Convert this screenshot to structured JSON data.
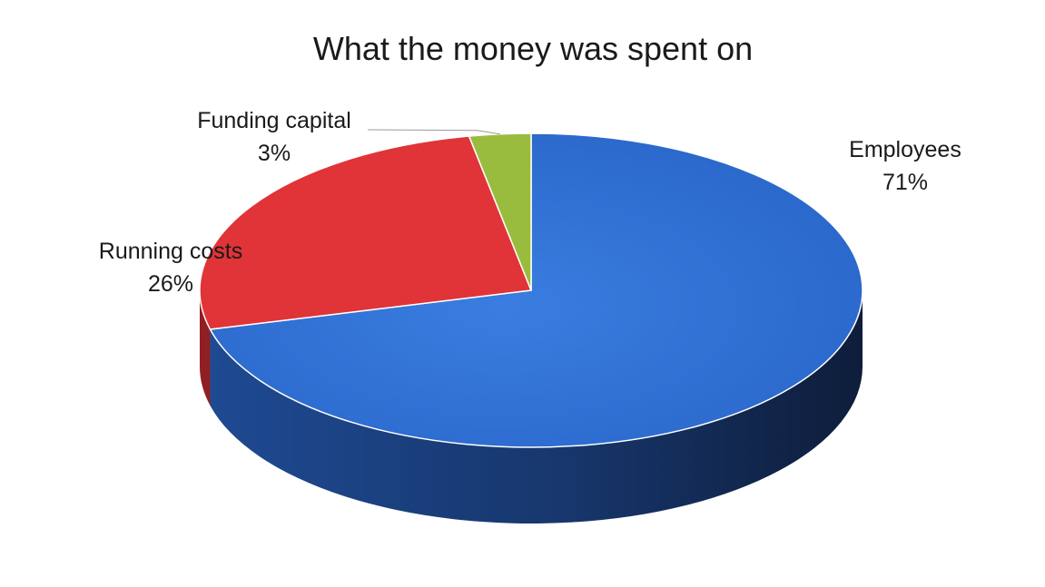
{
  "chart_data": {
    "type": "pie",
    "title": "What the money was spent on",
    "slices": [
      {
        "label": "Employees",
        "percent_label": "71%",
        "value": 71,
        "color": "#2e6fd0",
        "side_color": "#1c3f7c"
      },
      {
        "label": "Running costs",
        "percent_label": "26%",
        "value": 26,
        "color": "#e03438",
        "side_color": "#8f1f22"
      },
      {
        "label": "Funding capital",
        "percent_label": "3%",
        "value": 3,
        "color": "#9abc3e",
        "side_color": "#5f7a22"
      }
    ],
    "style": "3d"
  }
}
